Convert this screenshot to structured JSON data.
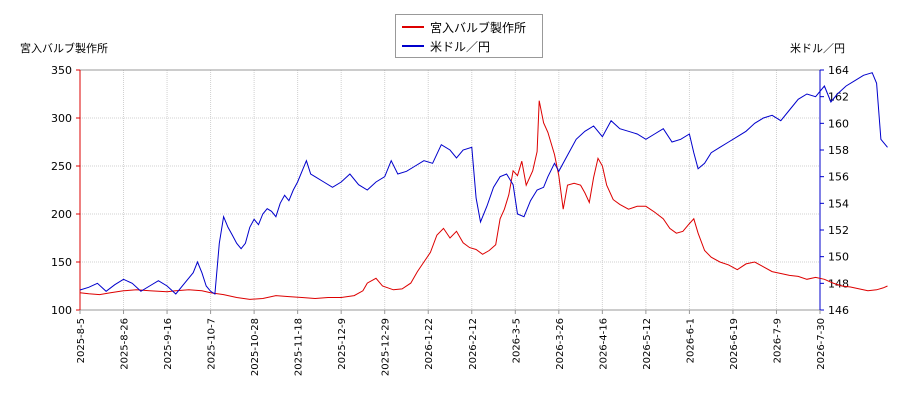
{
  "chart_data": {
    "type": "line",
    "left_axis_title": "宮入バルブ製作所",
    "right_axis_title": "米ドル／円",
    "x_ticks": [
      "2025-8-5",
      "2025-8-26",
      "2025-9-16",
      "2025-10-7",
      "2025-10-28",
      "2025-11-18",
      "2025-12-9",
      "2025-12-29",
      "2026-1-22",
      "2026-2-12",
      "2026-3-5",
      "2026-3-26",
      "2026-4-16",
      "2026-5-12",
      "2026-6-1",
      "2026-6-19",
      "2026-7-9",
      "2026-7-30"
    ],
    "y_left_ticks": [
      100,
      150,
      200,
      250,
      300,
      350
    ],
    "y_right_ticks": [
      146,
      148,
      150,
      152,
      154,
      156,
      158,
      160,
      162,
      164
    ],
    "ylim_left": [
      100,
      350
    ],
    "ylim_right": [
      146,
      164
    ],
    "grid": true,
    "legend_position": "top-center",
    "series": [
      {
        "name": "宮入バルブ製作所",
        "color": "#dd0000",
        "axis": "left",
        "values": [
          [
            0,
            118
          ],
          [
            0.2,
            117
          ],
          [
            0.45,
            116
          ],
          [
            0.7,
            118
          ],
          [
            1,
            120
          ],
          [
            1.3,
            121
          ],
          [
            1.6,
            120
          ],
          [
            2,
            119
          ],
          [
            2.2,
            120
          ],
          [
            2.5,
            121
          ],
          [
            2.8,
            120
          ],
          [
            3,
            118
          ],
          [
            3.3,
            116
          ],
          [
            3.6,
            113
          ],
          [
            3.9,
            111
          ],
          [
            4.2,
            112
          ],
          [
            4.5,
            115
          ],
          [
            4.8,
            114
          ],
          [
            5.1,
            113
          ],
          [
            5.4,
            112
          ],
          [
            5.7,
            113
          ],
          [
            6,
            113
          ],
          [
            6.3,
            115
          ],
          [
            6.5,
            120
          ],
          [
            6.6,
            128
          ],
          [
            6.8,
            133
          ],
          [
            6.95,
            125
          ],
          [
            7.2,
            121
          ],
          [
            7.4,
            122
          ],
          [
            7.6,
            128
          ],
          [
            7.75,
            140
          ],
          [
            7.9,
            150
          ],
          [
            8.05,
            160
          ],
          [
            8.2,
            178
          ],
          [
            8.35,
            185
          ],
          [
            8.5,
            175
          ],
          [
            8.65,
            182
          ],
          [
            8.8,
            170
          ],
          [
            8.95,
            165
          ],
          [
            9.1,
            163
          ],
          [
            9.25,
            158
          ],
          [
            9.4,
            162
          ],
          [
            9.55,
            168
          ],
          [
            9.65,
            195
          ],
          [
            9.75,
            205
          ],
          [
            9.85,
            220
          ],
          [
            9.95,
            245
          ],
          [
            10.05,
            240
          ],
          [
            10.15,
            255
          ],
          [
            10.25,
            230
          ],
          [
            10.4,
            245
          ],
          [
            10.5,
            265
          ],
          [
            10.55,
            318
          ],
          [
            10.65,
            295
          ],
          [
            10.75,
            285
          ],
          [
            10.9,
            262
          ],
          [
            11.0,
            240
          ],
          [
            11.1,
            205
          ],
          [
            11.2,
            230
          ],
          [
            11.35,
            232
          ],
          [
            11.5,
            230
          ],
          [
            11.6,
            222
          ],
          [
            11.7,
            212
          ],
          [
            11.8,
            238
          ],
          [
            11.9,
            258
          ],
          [
            12.0,
            250
          ],
          [
            12.1,
            230
          ],
          [
            12.25,
            215
          ],
          [
            12.4,
            210
          ],
          [
            12.6,
            205
          ],
          [
            12.8,
            208
          ],
          [
            13.0,
            208
          ],
          [
            13.2,
            202
          ],
          [
            13.4,
            195
          ],
          [
            13.55,
            185
          ],
          [
            13.7,
            180
          ],
          [
            13.85,
            182
          ],
          [
            14.0,
            190
          ],
          [
            14.1,
            195
          ],
          [
            14.2,
            180
          ],
          [
            14.35,
            162
          ],
          [
            14.5,
            155
          ],
          [
            14.7,
            150
          ],
          [
            14.9,
            147
          ],
          [
            15.1,
            142
          ],
          [
            15.3,
            148
          ],
          [
            15.5,
            150
          ],
          [
            15.7,
            145
          ],
          [
            15.9,
            140
          ],
          [
            16.1,
            138
          ],
          [
            16.3,
            136
          ],
          [
            16.5,
            135
          ],
          [
            16.7,
            132
          ],
          [
            16.9,
            134
          ],
          [
            17.1,
            132
          ],
          [
            17.3,
            128
          ],
          [
            17.5,
            125
          ],
          [
            17.7,
            124
          ],
          [
            17.9,
            122
          ],
          [
            18.1,
            120
          ],
          [
            18.3,
            121
          ],
          [
            18.45,
            123
          ],
          [
            18.55,
            125
          ]
        ]
      },
      {
        "name": "米ドル／円",
        "color": "#0000cc",
        "axis": "right",
        "values": [
          [
            0,
            147.5
          ],
          [
            0.2,
            147.7
          ],
          [
            0.4,
            148.0
          ],
          [
            0.6,
            147.4
          ],
          [
            0.8,
            147.9
          ],
          [
            1.0,
            148.3
          ],
          [
            1.2,
            148.0
          ],
          [
            1.4,
            147.4
          ],
          [
            1.6,
            147.8
          ],
          [
            1.8,
            148.2
          ],
          [
            2.0,
            147.8
          ],
          [
            2.2,
            147.2
          ],
          [
            2.4,
            148.0
          ],
          [
            2.6,
            148.8
          ],
          [
            2.7,
            149.6
          ],
          [
            2.8,
            148.8
          ],
          [
            2.9,
            147.8
          ],
          [
            3.0,
            147.4
          ],
          [
            3.1,
            147.2
          ],
          [
            3.2,
            151.0
          ],
          [
            3.3,
            153.0
          ],
          [
            3.4,
            152.2
          ],
          [
            3.5,
            151.6
          ],
          [
            3.6,
            151.0
          ],
          [
            3.7,
            150.6
          ],
          [
            3.8,
            151.0
          ],
          [
            3.9,
            152.2
          ],
          [
            4.0,
            152.8
          ],
          [
            4.1,
            152.4
          ],
          [
            4.2,
            153.2
          ],
          [
            4.3,
            153.6
          ],
          [
            4.4,
            153.4
          ],
          [
            4.5,
            153.0
          ],
          [
            4.6,
            154.0
          ],
          [
            4.7,
            154.6
          ],
          [
            4.8,
            154.2
          ],
          [
            4.9,
            155.0
          ],
          [
            5.0,
            155.6
          ],
          [
            5.1,
            156.4
          ],
          [
            5.2,
            157.2
          ],
          [
            5.3,
            156.2
          ],
          [
            5.4,
            156.0
          ],
          [
            5.6,
            155.6
          ],
          [
            5.8,
            155.2
          ],
          [
            6.0,
            155.6
          ],
          [
            6.2,
            156.2
          ],
          [
            6.4,
            155.4
          ],
          [
            6.6,
            155.0
          ],
          [
            6.8,
            155.6
          ],
          [
            7.0,
            156.0
          ],
          [
            7.15,
            157.2
          ],
          [
            7.3,
            156.2
          ],
          [
            7.5,
            156.4
          ],
          [
            7.7,
            156.8
          ],
          [
            7.9,
            157.2
          ],
          [
            8.1,
            157.0
          ],
          [
            8.3,
            158.4
          ],
          [
            8.5,
            158.0
          ],
          [
            8.65,
            157.4
          ],
          [
            8.8,
            158.0
          ],
          [
            9.0,
            158.2
          ],
          [
            9.1,
            154.4
          ],
          [
            9.2,
            152.6
          ],
          [
            9.35,
            153.8
          ],
          [
            9.5,
            155.2
          ],
          [
            9.65,
            156.0
          ],
          [
            9.8,
            156.2
          ],
          [
            9.95,
            155.4
          ],
          [
            10.05,
            153.2
          ],
          [
            10.2,
            153.0
          ],
          [
            10.35,
            154.2
          ],
          [
            10.5,
            155.0
          ],
          [
            10.65,
            155.2
          ],
          [
            10.75,
            156.0
          ],
          [
            10.9,
            157.0
          ],
          [
            11.0,
            156.4
          ],
          [
            11.2,
            157.6
          ],
          [
            11.4,
            158.8
          ],
          [
            11.6,
            159.4
          ],
          [
            11.8,
            159.8
          ],
          [
            12.0,
            159.0
          ],
          [
            12.2,
            160.2
          ],
          [
            12.4,
            159.6
          ],
          [
            12.6,
            159.4
          ],
          [
            12.8,
            159.2
          ],
          [
            13.0,
            158.8
          ],
          [
            13.2,
            159.2
          ],
          [
            13.4,
            159.6
          ],
          [
            13.6,
            158.6
          ],
          [
            13.8,
            158.8
          ],
          [
            14.0,
            159.2
          ],
          [
            14.1,
            157.8
          ],
          [
            14.2,
            156.6
          ],
          [
            14.35,
            157.0
          ],
          [
            14.5,
            157.8
          ],
          [
            14.7,
            158.2
          ],
          [
            14.9,
            158.6
          ],
          [
            15.1,
            159.0
          ],
          [
            15.3,
            159.4
          ],
          [
            15.5,
            160.0
          ],
          [
            15.7,
            160.4
          ],
          [
            15.9,
            160.6
          ],
          [
            16.1,
            160.2
          ],
          [
            16.3,
            161.0
          ],
          [
            16.5,
            161.8
          ],
          [
            16.7,
            162.2
          ],
          [
            16.9,
            162.0
          ],
          [
            17.1,
            162.8
          ],
          [
            17.25,
            161.6
          ],
          [
            17.4,
            162.2
          ],
          [
            17.6,
            162.8
          ],
          [
            17.8,
            163.2
          ],
          [
            18.0,
            163.6
          ],
          [
            18.2,
            163.8
          ],
          [
            18.3,
            163.0
          ],
          [
            18.4,
            158.8
          ],
          [
            18.55,
            158.2
          ]
        ]
      }
    ]
  }
}
